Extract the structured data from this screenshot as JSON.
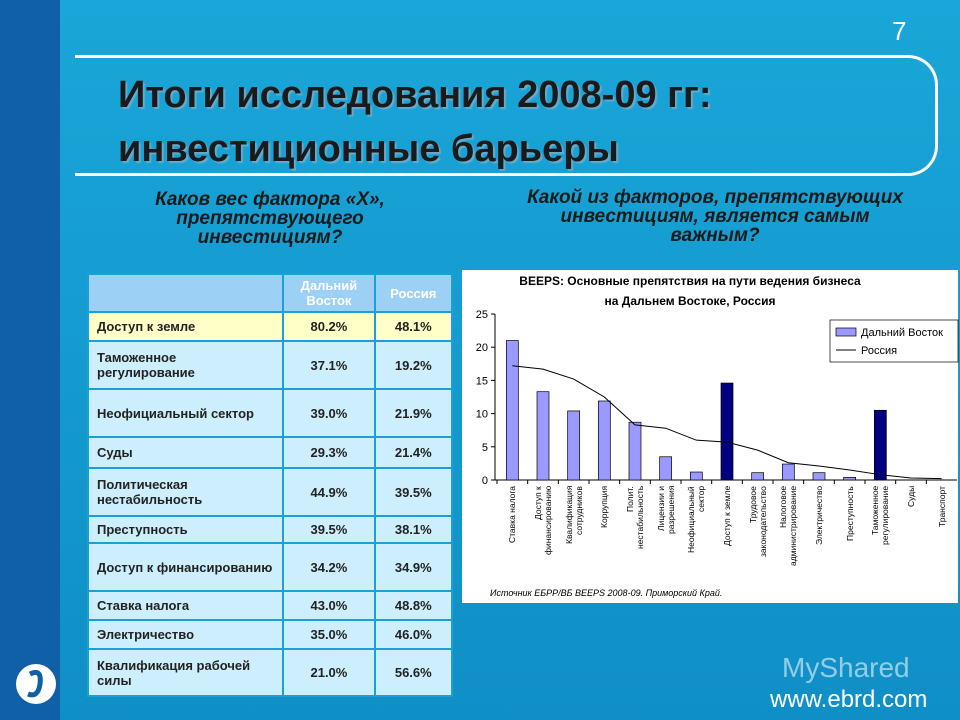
{
  "slide_number": "7",
  "title": "Итоги исследования 2008-09 гг:\nинвестиционные барьеры",
  "left_question": "Каков вес фактора «Х»,\nпрепятствующего\nинвестициям?",
  "right_question": "Какой из факторов, препятствующих\nинвестициям, является самым\nважным?",
  "table": {
    "header": [
      "Дальний Восток",
      "Россия"
    ],
    "rows": [
      [
        "Доступ к земле",
        "80.2%",
        "48.1%"
      ],
      [
        "Таможенное регулирование",
        "37.1%",
        "19.2%"
      ],
      [
        "Неофициальный сектор",
        "39.0%",
        "21.9%"
      ],
      [
        "Суды",
        "29.3%",
        "21.4%"
      ],
      [
        "Политическая нестабильность",
        "44.9%",
        "39.5%"
      ],
      [
        "Преступность",
        "39.5%",
        "38.1%"
      ],
      [
        "Доступ к финансированию",
        "34.2%",
        "34.9%"
      ],
      [
        "Ставка налога",
        "43.0%",
        "48.8%"
      ],
      [
        "Электричество",
        "35.0%",
        "46.0%"
      ],
      [
        "Квалификация рабочей силы",
        "21.0%",
        "56.6%"
      ]
    ]
  },
  "chart_data": {
    "type": "bar",
    "title": "BEEPS: Основные препятствия на пути ведения бизнеса\nна Дальнем Востоке, Россия",
    "categories": [
      "Ставка налога",
      "Доступ к\nфинансированию",
      "Квалификация\nсотрудников",
      "Коррупция",
      "Полит.\nнестабильность",
      "Лицензии и\nразрешения",
      "Неофициальный\nсектор",
      "Доступ к земле",
      "Трудовое\nзаконодательство",
      "Налоговое\nадминистрирование",
      "Электричество",
      "Преступность",
      "Таможенное\nрегулирование",
      "Суды",
      "Транспорт"
    ],
    "series": [
      {
        "name": "Дальний Восток",
        "type": "bar",
        "color": "#9999ff",
        "colors": [
          "#9999ff",
          "#9999ff",
          "#9999ff",
          "#9999ff",
          "#9999ff",
          "#9999ff",
          "#9999ff",
          "#000080",
          "#9999ff",
          "#9999ff",
          "#9999ff",
          "#9999ff",
          "#000080",
          "#9999ff",
          "#9999ff"
        ],
        "values": [
          21,
          13.3,
          10.4,
          11.9,
          8.7,
          3.5,
          1.2,
          14.6,
          1.1,
          2.4,
          1.1,
          0.4,
          10.5,
          0,
          0
        ]
      },
      {
        "name": "Россия",
        "type": "line",
        "color": "#000000",
        "values": [
          17.2,
          16.7,
          15.2,
          12.5,
          8.3,
          7.8,
          6,
          5.7,
          4.5,
          2.6,
          2.1,
          1.5,
          0.8,
          0.3,
          0.2
        ]
      }
    ],
    "ylim": [
      0,
      25
    ],
    "yticks": [
      0,
      5,
      10,
      15,
      20,
      25
    ],
    "source": "Источник ЕБРР/ВБ BEEPS 2008-09. Приморский Край."
  },
  "footer": {
    "website": "www.ebrd.com",
    "watermark": "MyShared"
  }
}
